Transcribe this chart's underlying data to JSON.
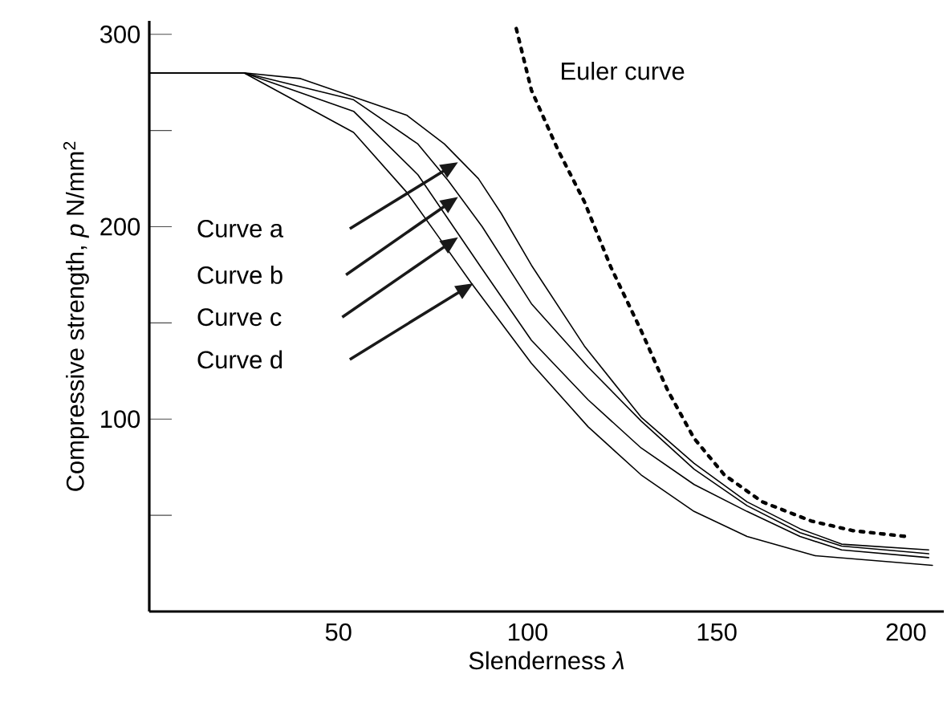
{
  "chart_data": {
    "type": "line",
    "xlabel": "Slenderness *λ*",
    "ylabel": "Compressive strength, *p* N/mm$^{2}$",
    "xlim": [
      0,
      210
    ],
    "ylim": [
      0,
      307
    ],
    "xticks": [
      50,
      100,
      150,
      200
    ],
    "yticks": [
      {
        "value": 50,
        "label": null
      },
      100,
      {
        "value": 150,
        "label": null
      },
      200,
      {
        "value": 250,
        "label": null
      },
      300
    ],
    "marker": "none",
    "annotations": [
      "Curve a",
      "Curve b",
      "Curve c",
      "Curve d"
    ],
    "series": [
      {
        "color": "#000000",
        "line_style": "solid",
        "x": [
          0,
          25,
          40,
          68,
          78,
          87,
          93,
          101,
          115,
          130,
          144,
          158,
          172,
          183,
          206
        ],
        "values": [
          280,
          280,
          277,
          258,
          243,
          225,
          207,
          180,
          138,
          101,
          77,
          57,
          43,
          35,
          32
        ]
      },
      {
        "color": "#000000",
        "line_style": "solid",
        "x": [
          0,
          25,
          54,
          71,
          79,
          88,
          101,
          116,
          130,
          144,
          158,
          172,
          183,
          206
        ],
        "values": [
          280,
          280,
          266,
          243,
          224,
          200,
          160,
          127,
          99,
          74,
          55,
          41,
          34,
          30
        ]
      },
      {
        "color": "#000000",
        "line_style": "solid",
        "x": [
          0,
          25,
          54,
          71,
          79,
          88,
          101,
          116,
          130,
          144,
          158,
          172,
          183,
          206
        ],
        "values": [
          280,
          280,
          260,
          227,
          204,
          178,
          141,
          110,
          85,
          66,
          52,
          39,
          32,
          28
        ]
      },
      {
        "color": "#000000",
        "line_style": "solid",
        "x": [
          0,
          25,
          54,
          68,
          76,
          85,
          101,
          116,
          130,
          144,
          158,
          176,
          207
        ],
        "values": [
          280,
          280,
          249,
          218,
          196,
          171,
          129,
          96,
          71,
          52,
          39,
          29,
          24
        ]
      },
      {
        "name": "Euler curve",
        "color": "#000000",
        "line_style": "dotted",
        "x": [
          97,
          101,
          108,
          115,
          122,
          130,
          137,
          144,
          152,
          162,
          175,
          186,
          200
        ],
        "values": [
          303,
          271,
          240,
          213,
          179,
          146,
          115,
          90,
          71,
          57,
          47,
          42,
          39
        ]
      }
    ]
  }
}
